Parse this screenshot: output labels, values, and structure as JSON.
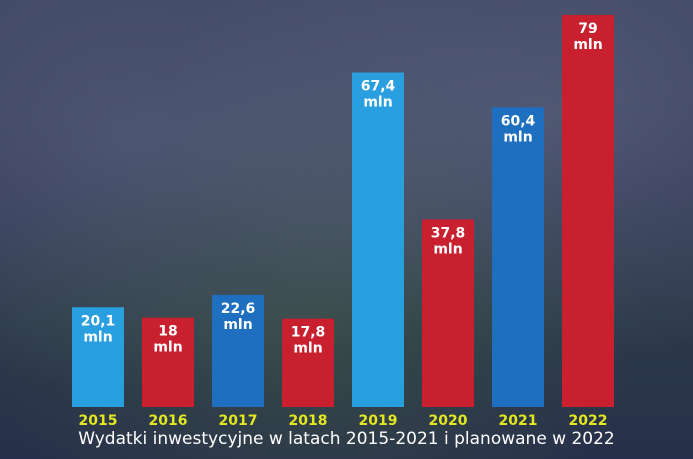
{
  "chart_data": {
    "type": "bar",
    "title": "Wydatki inwestycyjne w latach 2015-2021 i planowane w 2022",
    "xlabel": "",
    "ylabel": "",
    "ylim": [
      0,
      80
    ],
    "grid": false,
    "categories": [
      "2015",
      "2016",
      "2017",
      "2018",
      "2019",
      "2020",
      "2021",
      "2022"
    ],
    "values": [
      20.1,
      18,
      22.6,
      17.8,
      67.4,
      37.8,
      60.4,
      79
    ],
    "value_labels": [
      "20,1",
      "18",
      "22,6",
      "17,8",
      "67,4",
      "37,8",
      "60,4",
      "79"
    ],
    "unit": "mln",
    "colors": [
      "#2a9fe0",
      "#c8202e",
      "#1e6fc0",
      "#c8202e",
      "#2a9fe0",
      "#c8202e",
      "#1e6fc0",
      "#c8202e"
    ],
    "label_color": "#ffffff",
    "year_color": "#e3e81e"
  }
}
